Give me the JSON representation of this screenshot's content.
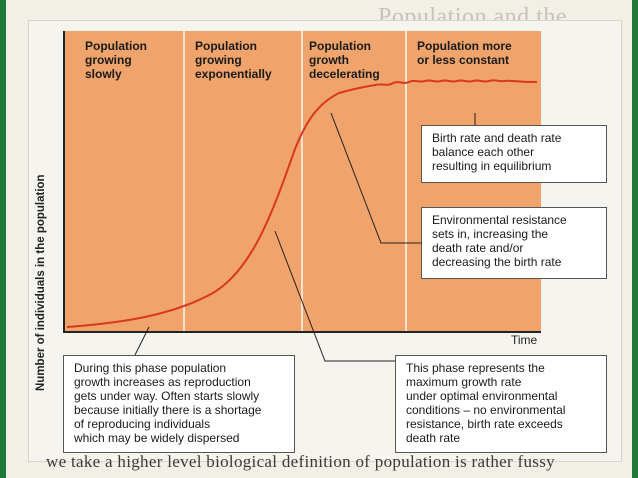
{
  "background_text": {
    "heading": "Population and the environment",
    "footer": "we take a higher level biological definition of population is rather fussy"
  },
  "diagram": {
    "y_axis_label": "Number of individuals in the population",
    "x_axis_label": "Time",
    "phases": [
      {
        "label_lines": [
          "Population",
          "growing",
          "slowly"
        ]
      },
      {
        "label_lines": [
          "Population",
          "growing",
          "exponentially"
        ]
      },
      {
        "label_lines": [
          "Population",
          "growth",
          "decelerating"
        ]
      },
      {
        "label_lines": [
          "Population more",
          "or less constant"
        ]
      }
    ],
    "callouts": [
      {
        "lines": [
          "Birth rate and death rate",
          "balance each other",
          "resulting in equilibrium"
        ]
      },
      {
        "lines": [
          "Environmental resistance",
          "sets in, increasing the",
          "death rate and/or",
          "decreasing the birth rate"
        ]
      },
      {
        "lines": [
          "During this phase population",
          "growth increases as reproduction",
          "gets under way. Often starts slowly",
          "because initially there is a shortage",
          "of reproducing individuals",
          "which may be widely dispersed"
        ]
      },
      {
        "lines": [
          "This phase represents the",
          "maximum growth rate",
          "under optimal environmental",
          "conditions – no environmental",
          "resistance, birth rate exceeds",
          "death rate"
        ]
      }
    ],
    "colors": {
      "plot_fill": "#f0a36a",
      "curve": "#d9371f",
      "divider": "#fbe2cf"
    }
  }
}
